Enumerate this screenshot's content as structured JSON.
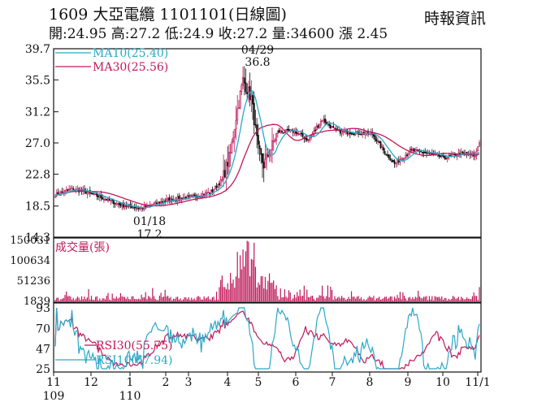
{
  "header": {
    "title": "1609  大亞電纜 1101101(日線圖)",
    "quote": "開:24.95 高:27.2 低:24.9 收:27.2 量:34600 漲 2.45",
    "source": "時報資訊"
  },
  "chart_data": {
    "type": "candlestick",
    "price": {
      "ylim": [
        14.3,
        39.7
      ],
      "yticks": [
        "39.7",
        "35.5",
        "31.2",
        "27.0",
        "22.8",
        "18.5",
        "14.3"
      ],
      "legend": [
        {
          "label": "MA10(25.40)",
          "color": "#2ba8c8"
        },
        {
          "label": "MA30(25.56)",
          "color": "#c0185a"
        }
      ],
      "annotations": [
        {
          "date_label": "04/29",
          "value_label": "36.8",
          "type": "high"
        },
        {
          "date_label": "01/18",
          "value_label": "17.2",
          "type": "low"
        }
      ],
      "series_estimate": [
        {
          "month": "11",
          "close": 20.0
        },
        {
          "month": "12",
          "close": 20.6
        },
        {
          "month": "1",
          "close": 18.6
        },
        {
          "month": "2",
          "close": 18.8
        },
        {
          "month": "3",
          "close": 19.5
        },
        {
          "month": "4",
          "close": 20.8
        },
        {
          "month": "4/29",
          "close": 35.5
        },
        {
          "month": "5",
          "close": 26.0
        },
        {
          "month": "6",
          "close": 28.8
        },
        {
          "month": "7",
          "close": 29.5
        },
        {
          "month": "8",
          "close": 27.0
        },
        {
          "month": "9",
          "close": 25.5
        },
        {
          "month": "10",
          "close": 25.3
        },
        {
          "month": "11/1",
          "close": 27.2
        }
      ]
    },
    "volume": {
      "title": "成交量(張)",
      "yticks": [
        "150031",
        "100634",
        "51236",
        "1839"
      ],
      "ylim": [
        1839,
        150031
      ],
      "color": "#c0185a"
    },
    "rsi": {
      "ylim": [
        25,
        93
      ],
      "yticks": [
        "93",
        "70",
        "47",
        "25"
      ],
      "legend": [
        {
          "label": "RSI30(55.75)",
          "color": "#c0185a"
        },
        {
          "label": "RSI10(67.94)",
          "color": "#2ba8c8"
        }
      ]
    },
    "x_axis": {
      "months": [
        "11",
        "12",
        "1",
        "2",
        "3",
        "4",
        "5",
        "6",
        "7",
        "8",
        "9",
        "10",
        "11/1"
      ],
      "years": [
        "109",
        "110"
      ]
    },
    "colors": {
      "up": "#c0185a",
      "down": "#111111",
      "ma10": "#2ba8c8",
      "ma30": "#c0185a"
    }
  }
}
